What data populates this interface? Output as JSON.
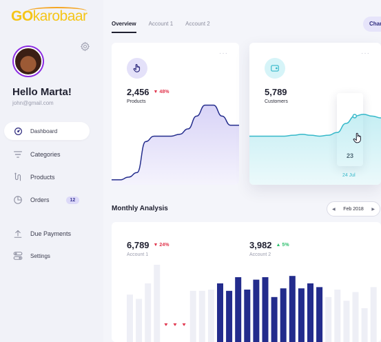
{
  "brand": {
    "logo_prefix": "GO",
    "logo_suffix": "karobaar"
  },
  "user": {
    "greeting": "Hello Marta!",
    "email": "john@gmail.com"
  },
  "nav": {
    "dashboard": "Dashboard",
    "categories": "Categories",
    "products": "Products",
    "orders": "Orders",
    "orders_badge": "12",
    "due_payments": "Due Payments",
    "settings": "Settings"
  },
  "tabs": {
    "overview": "Overview",
    "account1": "Account 1",
    "account2": "Account 2"
  },
  "header": {
    "chart_button": "Char"
  },
  "products_card": {
    "value": "2,456",
    "delta": "48%",
    "label": "Products",
    "dots": "···"
  },
  "customers_card": {
    "value": "5,789",
    "label": "Customers",
    "tooltip_value": "23",
    "tooltip_date": "24 Jul",
    "dots": "···"
  },
  "analysis": {
    "title": "Monthly Analysis",
    "month": "Feb 2018",
    "account1": {
      "value": "6,789",
      "delta": "24%",
      "label": "Account 1"
    },
    "account2": {
      "value": "3,982",
      "delta": "5%",
      "label": "Account 2"
    }
  },
  "colors": {
    "accent_purple": "#2d2a7d",
    "chart_navy": "#232c8c",
    "chart_cyan": "#35b8c9",
    "down": "#e0334b",
    "up": "#2dbf6d"
  },
  "chart_data": [
    {
      "type": "area",
      "series": [
        {
          "values": [
            10,
            10,
            13,
            18,
            52,
            58,
            58,
            58,
            60,
            66,
            80,
            92,
            92,
            80,
            70,
            70
          ]
        }
      ],
      "ylim": [
        0,
        100
      ],
      "grid": false
    },
    {
      "type": "area",
      "series": [
        {
          "values": [
            58,
            58,
            58,
            58,
            58,
            59,
            60,
            59,
            58,
            59,
            62,
            72,
            80,
            82,
            80,
            78
          ]
        }
      ],
      "ylim": [
        0,
        100
      ],
      "grid": false
    },
    {
      "type": "bar",
      "series": [
        {
          "values": [
            52,
            45,
            70,
            100,
            0,
            0,
            0,
            58,
            58,
            60,
            70,
            58,
            80,
            60,
            76,
            80,
            48,
            62,
            82,
            62,
            70,
            64,
            48,
            60,
            42,
            56,
            30,
            64
          ]
        },
        {
          "values": [
            0,
            0,
            0,
            0,
            0,
            0,
            0,
            0,
            0,
            0,
            0,
            0,
            0,
            0,
            0,
            0,
            0,
            0,
            0,
            0,
            0,
            0,
            0,
            0,
            0,
            0,
            0,
            0
          ]
        }
      ],
      "ylim": [
        0,
        100
      ],
      "grid": false
    }
  ]
}
